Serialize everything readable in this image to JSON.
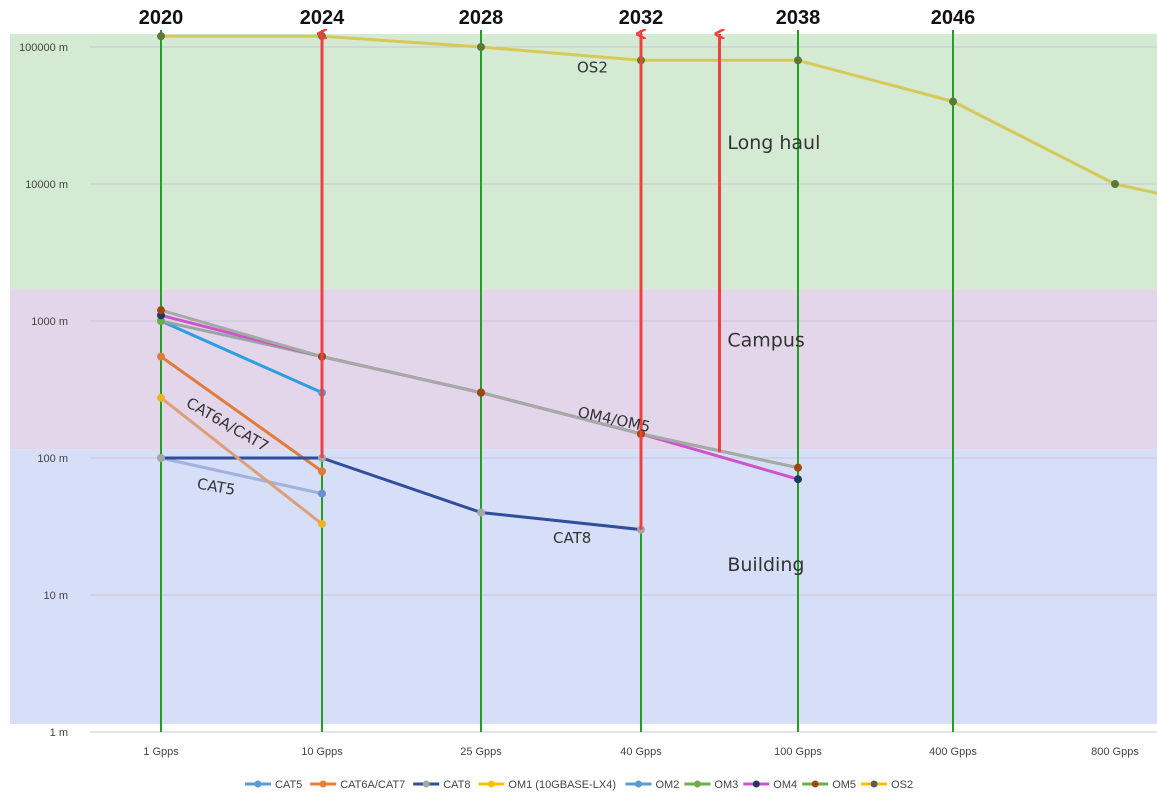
{
  "chart_data": {
    "type": "line",
    "y_scale": "log",
    "ylim": [
      1,
      130000
    ],
    "y_ticks": [
      {
        "value": 1,
        "label": "1 m"
      },
      {
        "value": 10,
        "label": "10 m"
      },
      {
        "value": 100,
        "label": "100 m"
      },
      {
        "value": 1000,
        "label": "1000 m"
      },
      {
        "value": 10000,
        "label": "10000 m"
      },
      {
        "value": 100000,
        "label": "100000 m"
      }
    ],
    "categories": [
      "1 Gpps",
      "10 Gpps",
      "25 Gpps",
      "40 Gpps",
      "100 Gpps",
      "400 Gpps",
      "800 Gpps"
    ],
    "years": [
      {
        "label": "2020",
        "x": 0
      },
      {
        "label": "2024",
        "x": 1
      },
      {
        "label": "2028",
        "x": 2
      },
      {
        "label": "2032",
        "x": 3
      },
      {
        "label": "2038",
        "x": 4
      },
      {
        "label": "2046",
        "x": 5
      }
    ],
    "zones": [
      {
        "name": "Long haul",
        "y_from": 1700,
        "y_to": 130000,
        "color": "#d4ead2"
      },
      {
        "name": "Campus",
        "y_from": 115,
        "y_to": 1700,
        "color": "#e4d6ea"
      },
      {
        "name": "Building",
        "y_from": 1.1,
        "y_to": 115,
        "color": "#d7def8"
      }
    ],
    "arrows": [
      {
        "x": 1,
        "from": 100,
        "to": 120000
      },
      {
        "x": 3,
        "from": 30,
        "to": 120000
      },
      {
        "x": 3.5,
        "from": 110,
        "to": 120000
      }
    ],
    "series": [
      {
        "name": "CAT5",
        "color": "#9fb3dc",
        "marker": "#6a8fd0",
        "points": [
          [
            0,
            100
          ],
          [
            1,
            55
          ]
        ]
      },
      {
        "name": "CAT6A/CAT7",
        "color": "#e07b39",
        "marker": "#e07b39",
        "points": [
          [
            0,
            550
          ],
          [
            1,
            80
          ]
        ]
      },
      {
        "name": "CAT8",
        "color": "#2f4f9c",
        "marker": "#a6a6a6",
        "points": [
          [
            0,
            100
          ],
          [
            1,
            100
          ],
          [
            2,
            40
          ],
          [
            3,
            30
          ]
        ]
      },
      {
        "name": "OM1 (10GBASE-LX4)",
        "color": "#dca078",
        "marker": "#f0b323",
        "points": [
          [
            0,
            275
          ],
          [
            1,
            33
          ]
        ]
      },
      {
        "name": "OM2",
        "color": "#2e9ee0",
        "marker": "#5b9bd5",
        "points": [
          [
            0,
            1000
          ],
          [
            1,
            300
          ]
        ]
      },
      {
        "name": "OM3",
        "color": "#9aa6a2",
        "marker": "#70ad47",
        "points": [
          [
            0,
            1000
          ],
          [
            1,
            550
          ],
          [
            2,
            300
          ],
          [
            3,
            150
          ],
          [
            4,
            85
          ]
        ]
      },
      {
        "name": "OM4",
        "color": "#cc55cc",
        "marker": "#1f3864",
        "points": [
          [
            0,
            1100
          ],
          [
            1,
            550
          ],
          [
            2,
            300
          ],
          [
            3,
            150
          ],
          [
            4,
            70
          ]
        ]
      },
      {
        "name": "OM5",
        "color": "#a5aaa4",
        "marker": "#9e480e",
        "points": [
          [
            0,
            1200
          ],
          [
            1,
            550
          ],
          [
            2,
            300
          ],
          [
            3,
            150
          ],
          [
            4,
            85
          ]
        ]
      },
      {
        "name": "OS2",
        "color": "#d7c85a",
        "marker": "#5b7a3a",
        "points": [
          [
            0,
            120000
          ],
          [
            1,
            120000
          ],
          [
            2,
            100000
          ],
          [
            3,
            80000
          ],
          [
            4,
            80000
          ],
          [
            5,
            40000
          ],
          [
            6,
            10000
          ],
          [
            6.6,
            7000
          ]
        ]
      }
    ],
    "legend": [
      {
        "name": "CAT5",
        "color": "#5b9bd5",
        "marker": "#5b9bd5"
      },
      {
        "name": "CAT6A/CAT7",
        "color": "#ed7d31",
        "marker": "#ed7d31"
      },
      {
        "name": "CAT8",
        "color": "#2f4f9c",
        "marker": "#a5a5a5"
      },
      {
        "name": "OM1 (10GBASE-LX4)",
        "color": "#ffc000",
        "marker": "#ffc000"
      },
      {
        "name": "OM2",
        "color": "#5b9bd5",
        "marker": "#5b9bd5"
      },
      {
        "name": "OM3",
        "color": "#70ad47",
        "marker": "#70ad47"
      },
      {
        "name": "OM4",
        "color": "#cc55cc",
        "marker": "#1f3864"
      },
      {
        "name": "OM5",
        "color": "#70ad47",
        "marker": "#9e480e"
      },
      {
        "name": "OS2",
        "color": "#ffc000",
        "marker": "#5b5b5b"
      }
    ],
    "annotations": [
      {
        "text": "OS2",
        "x": 2.6,
        "y": 65000,
        "rotate": 0
      },
      {
        "text": "CAT6A/CAT7",
        "x": 0.15,
        "y": 240,
        "rotate": 30
      },
      {
        "text": "CAT5",
        "x": 0.22,
        "y": 60,
        "rotate": 10
      },
      {
        "text": "OM4/OM5",
        "x": 2.6,
        "y": 200,
        "rotate": 12
      },
      {
        "text": "CAT8",
        "x": 2.45,
        "y": 24,
        "rotate": 0
      }
    ],
    "zone_labels": [
      {
        "text": "Long haul",
        "x": 3.55,
        "y": 18000
      },
      {
        "text": "Campus",
        "x": 3.55,
        "y": 650
      },
      {
        "text": "Building",
        "x": 3.55,
        "y": 15
      }
    ],
    "colors": {
      "vertical_line": "#22a022",
      "arrow": "#f04040",
      "gridline": "#c8c8d8"
    }
  }
}
